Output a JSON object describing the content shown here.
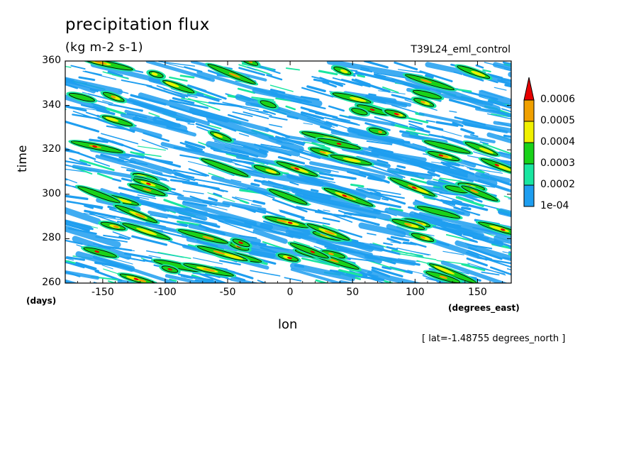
{
  "chart_data": {
    "type": "heatmap",
    "title": "precipitation flux",
    "subtitle": "(kg m-2 s-1)",
    "run_name": "T39L24_eml_control",
    "ylabel": "time",
    "yunits": "(days)",
    "xlabel": "lon",
    "xunits": "(degrees_east)",
    "footnote": "[ lat=-1.48755 degrees_north ]",
    "xlim": [
      -180,
      177
    ],
    "ylim": [
      260,
      360
    ],
    "xticks": [
      "-150",
      "-100",
      "-50",
      "0",
      "50",
      "100",
      "150"
    ],
    "xtick_values": [
      -150,
      -100,
      -50,
      0,
      50,
      100,
      150
    ],
    "yticks": [
      "260",
      "280",
      "300",
      "320",
      "340",
      "360"
    ],
    "ytick_values": [
      260,
      280,
      300,
      320,
      340,
      360
    ],
    "colorbar": {
      "levels": [
        "1e-04",
        "0.0002",
        "0.0003",
        "0.0004",
        "0.0005",
        "0.0006"
      ],
      "colors": [
        "#1e9ef0",
        "#19e6a0",
        "#19d219",
        "#f0f000",
        "#f0a000",
        "#e60000"
      ],
      "extend": "max"
    },
    "contour_color": "#000000",
    "background": "#ffffff"
  }
}
